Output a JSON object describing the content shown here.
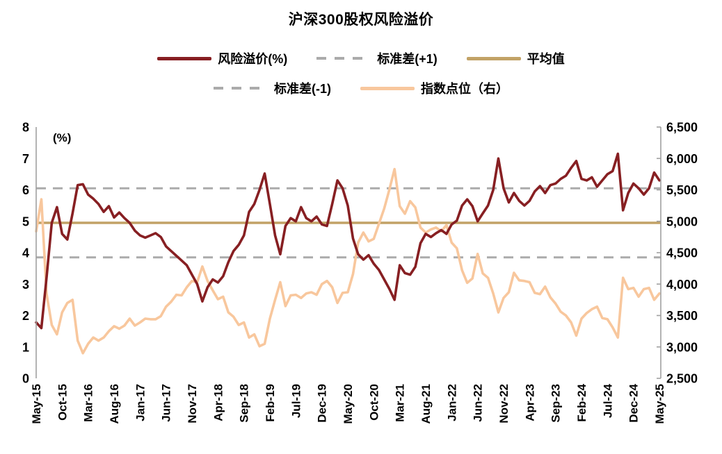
{
  "title": "沪深300股权风险溢价",
  "legend": {
    "items": [
      {
        "label": "风险溢价(%)",
        "swatch": "solid",
        "color": "#871F22"
      },
      {
        "label": "标准差(+1)",
        "swatch": "dashed",
        "color": "#ABABAB"
      },
      {
        "label": "平均值",
        "swatch": "solid",
        "color": "#C2A266"
      },
      {
        "label": "标准差(-1)",
        "swatch": "dashed",
        "color": "#ABABAB"
      },
      {
        "label": "指数点位（右）",
        "swatch": "solid",
        "color": "#F8C79D"
      }
    ]
  },
  "colors": {
    "risk_premium": "#871F22",
    "index_level": "#F8C79D",
    "mean_line": "#C2A266",
    "std_line": "#ABABAB",
    "axis_line": "#A0A0A0",
    "text": "#000000"
  },
  "chart_data": {
    "type": "line",
    "title": "沪深300股权风险溢价",
    "x_start": "May-15",
    "x_end": "May-25",
    "x_step": "1 month",
    "x_tick_labels": [
      "May-15",
      "Oct-15",
      "Mar-16",
      "Aug-16",
      "Jan-17",
      "Jun-17",
      "Nov-17",
      "Apr-18",
      "Sep-18",
      "Feb-19",
      "Jul-19",
      "Dec-19",
      "May-20",
      "Oct-20",
      "Mar-21",
      "Aug-21",
      "Jan-22",
      "Jun-22",
      "Nov-22",
      "Apr-23",
      "Sep-23",
      "Feb-24",
      "Jul-24",
      "Dec-24",
      "May-25"
    ],
    "x_tick_month_indices": [
      0,
      5,
      10,
      15,
      20,
      25,
      30,
      35,
      40,
      45,
      50,
      55,
      60,
      65,
      70,
      75,
      80,
      85,
      90,
      95,
      100,
      105,
      110,
      115,
      120
    ],
    "left_axis": {
      "unit": "(%)",
      "range": [
        0,
        8
      ],
      "tick_values": [
        0,
        1,
        2,
        3,
        4,
        5,
        6,
        7,
        8
      ]
    },
    "right_axis": {
      "range": [
        2500,
        6500
      ],
      "tick_values": [
        2500,
        3000,
        3500,
        4000,
        4500,
        5000,
        5500,
        6000,
        6500
      ],
      "tick_labels": [
        "2,500",
        "3,000",
        "3,500",
        "4,000",
        "4,500",
        "5,000",
        "5,500",
        "6,000",
        "6,500"
      ]
    },
    "reference_lines": [
      {
        "name": "平均值",
        "axis": "left",
        "value": 4.95,
        "style": "solid",
        "color": "#C2A266"
      },
      {
        "name": "标准差(+1)",
        "axis": "left",
        "value": 6.05,
        "style": "dashed",
        "color": "#ABABAB"
      },
      {
        "name": "标准差(-1)",
        "axis": "left",
        "value": 3.85,
        "style": "dashed",
        "color": "#ABABAB"
      }
    ],
    "series": [
      {
        "name": "风险溢价(%)",
        "axis": "left",
        "style": "solid",
        "color": "#871F22",
        "values": [
          1.78,
          1.6,
          3.2,
          4.95,
          5.45,
          4.6,
          4.42,
          5.25,
          6.15,
          6.18,
          5.85,
          5.72,
          5.55,
          5.3,
          5.48,
          5.12,
          5.28,
          5.1,
          4.95,
          4.7,
          4.55,
          4.48,
          4.55,
          4.62,
          4.5,
          4.2,
          4.05,
          3.9,
          3.75,
          3.6,
          3.3,
          3.0,
          2.45,
          2.9,
          3.15,
          3.05,
          3.25,
          3.7,
          4.05,
          4.25,
          4.55,
          5.3,
          5.55,
          6.0,
          6.52,
          5.55,
          4.55,
          3.95,
          4.85,
          5.1,
          5.0,
          5.45,
          5.1,
          5.0,
          5.15,
          4.9,
          4.85,
          5.55,
          6.3,
          6.05,
          5.5,
          4.45,
          3.95,
          3.78,
          3.92,
          3.65,
          3.45,
          3.15,
          2.85,
          2.5,
          3.6,
          3.35,
          3.3,
          3.55,
          4.3,
          4.6,
          4.5,
          4.62,
          4.72,
          4.6,
          4.9,
          5.02,
          5.5,
          5.7,
          5.48,
          5.0,
          5.25,
          5.5,
          6.0,
          7.0,
          6.05,
          5.6,
          5.9,
          5.65,
          5.5,
          5.65,
          5.95,
          6.12,
          5.9,
          6.15,
          6.2,
          6.35,
          6.45,
          6.7,
          6.92,
          6.35,
          6.3,
          6.4,
          6.1,
          6.3,
          6.5,
          6.6,
          7.15,
          5.35,
          5.9,
          6.2,
          6.05,
          5.85,
          6.05,
          6.55,
          6.3
        ]
      },
      {
        "name": "指数点位（右）",
        "axis": "right",
        "style": "solid",
        "color": "#F8C79D",
        "values": [
          4840,
          5350,
          3850,
          3350,
          3200,
          3550,
          3700,
          3750,
          3100,
          2900,
          3050,
          3150,
          3100,
          3150,
          3250,
          3330,
          3290,
          3340,
          3450,
          3340,
          3390,
          3450,
          3440,
          3440,
          3490,
          3640,
          3720,
          3830,
          3820,
          3950,
          4050,
          4030,
          4280,
          4050,
          3900,
          3760,
          3800,
          3550,
          3480,
          3350,
          3390,
          3150,
          3200,
          3010,
          3050,
          3450,
          3750,
          4030,
          3650,
          3820,
          3830,
          3780,
          3850,
          3870,
          3830,
          4000,
          4050,
          3950,
          3700,
          3860,
          3870,
          4160,
          4660,
          4820,
          4680,
          4720,
          4960,
          5200,
          5500,
          5830,
          5240,
          5120,
          5320,
          5220,
          4900,
          4820,
          4870,
          4900,
          4840,
          4940,
          4660,
          4570,
          4220,
          4020,
          4090,
          4480,
          4170,
          4100,
          3850,
          3550,
          3780,
          3870,
          4180,
          4060,
          4050,
          4030,
          3860,
          3840,
          3960,
          3790,
          3690,
          3560,
          3500,
          3390,
          3180,
          3450,
          3540,
          3600,
          3640,
          3460,
          3440,
          3310,
          3150,
          4100,
          3920,
          3940,
          3800,
          3920,
          3940,
          3750,
          3850
        ]
      }
    ],
    "legend_position": "top",
    "grid": "off"
  }
}
